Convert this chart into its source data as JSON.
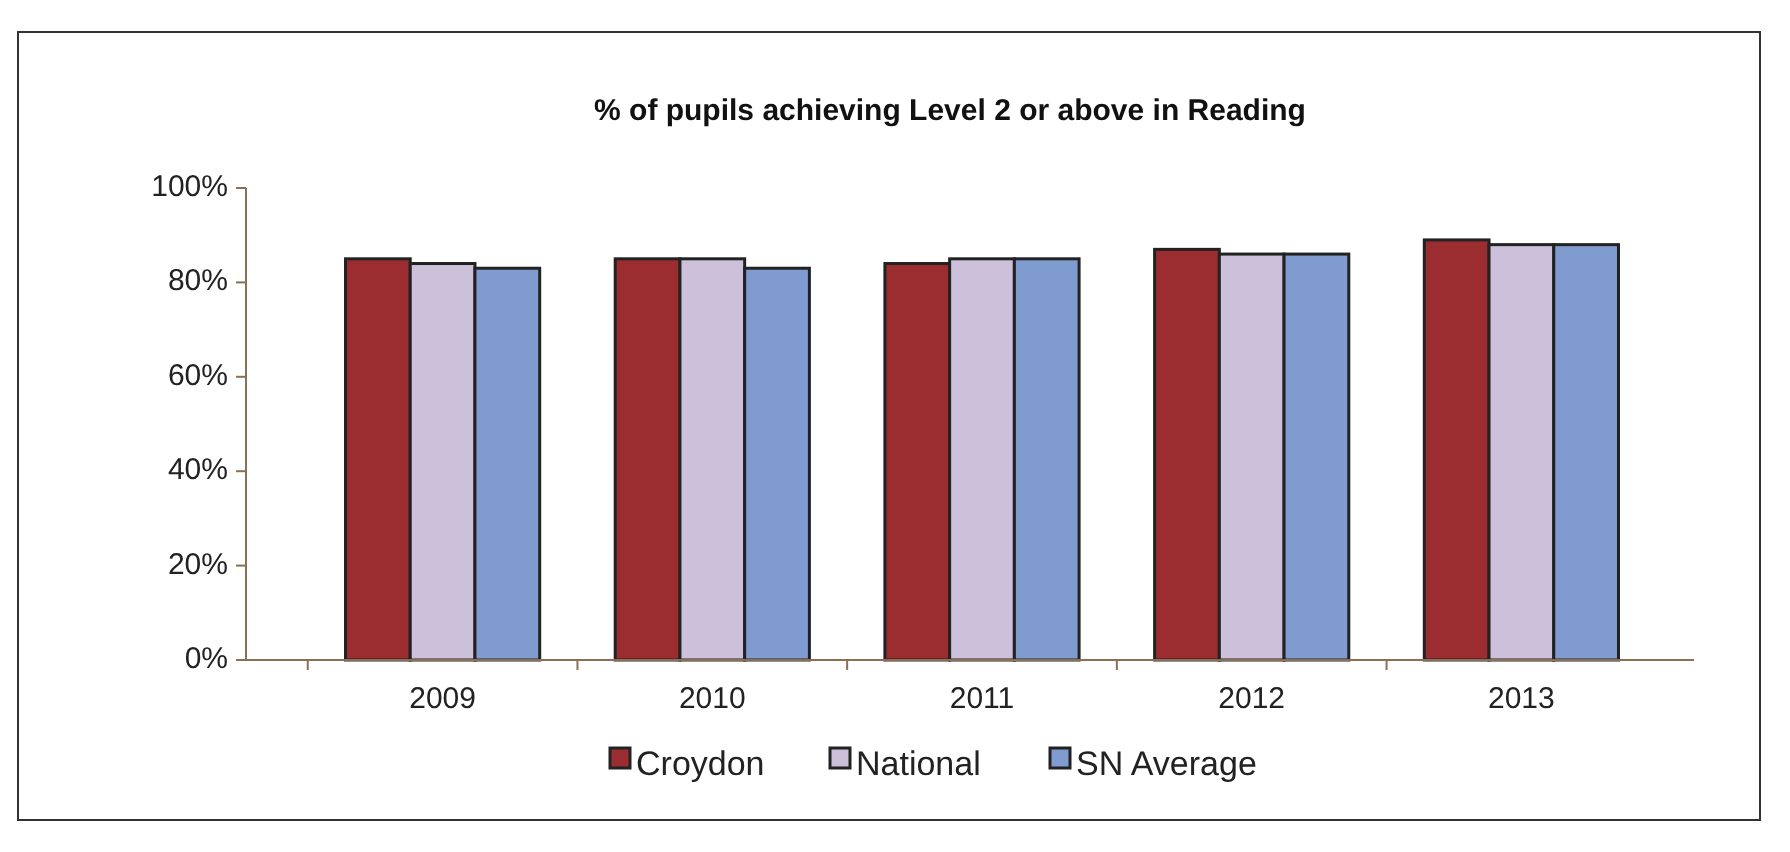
{
  "chart_data": {
    "type": "bar",
    "title": "% of pupils achieving Level 2 or above in Reading",
    "categories": [
      "2009",
      "2010",
      "2011",
      "2012",
      "2013"
    ],
    "series": [
      {
        "name": "Croydon",
        "color": "#9b2d30",
        "values": [
          85,
          85,
          84,
          87,
          89
        ]
      },
      {
        "name": "National",
        "color": "#ccc0da",
        "values": [
          84,
          85,
          85,
          86,
          88
        ]
      },
      {
        "name": "SN Average",
        "color": "#7f9bd0",
        "values": [
          83,
          83,
          85,
          86,
          88
        ]
      }
    ],
    "ylim": [
      0,
      100
    ],
    "yticks": [
      {
        "value": 0,
        "label": "0%"
      },
      {
        "value": 20,
        "label": "20%"
      },
      {
        "value": 40,
        "label": "40%"
      },
      {
        "value": 60,
        "label": "60%"
      },
      {
        "value": 80,
        "label": "80%"
      },
      {
        "value": 100,
        "label": "100%"
      }
    ],
    "legend": "bottom"
  }
}
